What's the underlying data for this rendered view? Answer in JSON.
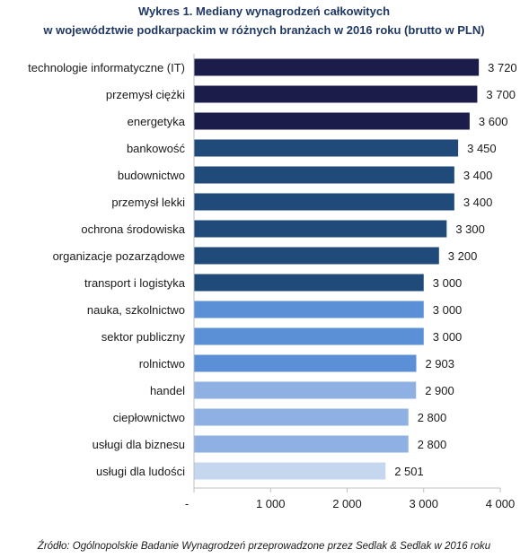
{
  "chart_data": {
    "type": "bar",
    "orientation": "horizontal",
    "title_line1": "Wykres 1. Mediany wynagrodzeń całkowitych",
    "title_line2": "w województwie podkarpackim w różnych branżach w 2016 roku (brutto w PLN)",
    "categories": [
      "technologie informatyczne (IT)",
      "przemysł ciężki",
      "energetyka",
      "bankowość",
      "budownictwo",
      "przemysł lekki",
      "ochrona środowiska",
      "organizacje pozarządowe",
      "transport i logistyka",
      "nauka, szkolnictwo",
      "sektor publiczny",
      "rolnictwo",
      "handel",
      "ciepłownictwo",
      "usługi dla biznesu",
      "usługi dla ludości"
    ],
    "values": [
      3720,
      3700,
      3600,
      3450,
      3400,
      3400,
      3300,
      3200,
      3000,
      3000,
      3000,
      2903,
      2900,
      2800,
      2800,
      2501
    ],
    "value_labels": [
      "3 720",
      "3 700",
      "3 600",
      "3 450",
      "3 400",
      "3 400",
      "3 300",
      "3 200",
      "3 000",
      "3 000",
      "3 000",
      "2 903",
      "2 900",
      "2 800",
      "2 800",
      "2 501"
    ],
    "bar_colors": [
      "#1c1c4a",
      "#1c1c4a",
      "#1c1c4a",
      "#1f4a7a",
      "#1f4a7a",
      "#1f4a7a",
      "#1f4a7a",
      "#1f4a7a",
      "#1f4a7a",
      "#5b8fd6",
      "#5b8fd6",
      "#5b8fd6",
      "#8fb0e3",
      "#8fb0e3",
      "#8fb0e3",
      "#c5d6ef"
    ],
    "xlim": [
      0,
      4000
    ],
    "x_ticks": [
      0,
      1000,
      2000,
      3000,
      4000
    ],
    "x_tick_labels": [
      "-",
      "1 000",
      "2 000",
      "3 000",
      "4 000"
    ],
    "grid": false,
    "legend": "none",
    "source": "Źródło: Ogólnopolskie Badanie Wynagrodzeń przeprowadzone przez Sedlak & Sedlak w 2016 roku"
  }
}
